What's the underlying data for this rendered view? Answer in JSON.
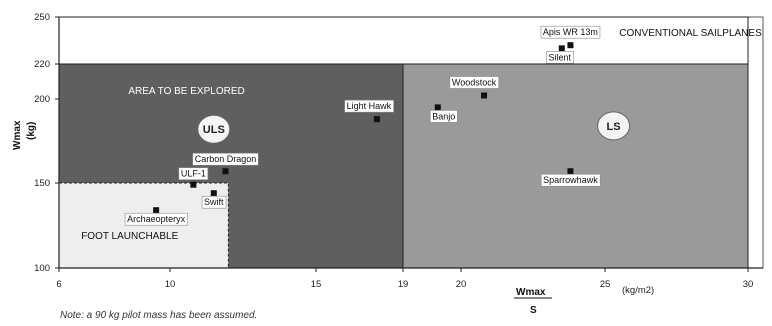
{
  "chart_data": {
    "type": "scatter",
    "x_range": [
      6,
      30
    ],
    "y_range": [
      100,
      250
    ],
    "x_ticks": [
      "6",
      "10",
      "15",
      "19",
      "20",
      "25",
      "30"
    ],
    "y_ticks": [
      "100",
      "150",
      "200",
      "220",
      "250"
    ],
    "xlabel": {
      "top": "Wmax",
      "bottom": "S"
    },
    "xunit": "(kg/m2)",
    "ylabel": {
      "top": "Wmax",
      "bottom": "(kg)"
    },
    "regions": [
      {
        "name": "CONVENTIONAL SAILPLANES",
        "x": [
          6,
          30
        ],
        "y": [
          220,
          250
        ],
        "color": "#ffffff"
      },
      {
        "name": "AREA TO BE EXPLORED",
        "badge": "ULS",
        "x": [
          6,
          19
        ],
        "y": [
          100,
          220
        ],
        "color": "#5f5f5f"
      },
      {
        "name": "",
        "badge": "LS",
        "x": [
          19,
          30
        ],
        "y": [
          100,
          220
        ],
        "color": "#9a9a9a"
      },
      {
        "name": "FOOT LAUNCHABLE",
        "x": [
          6,
          12
        ],
        "y": [
          100,
          150
        ],
        "color": "#f1f1f1"
      }
    ],
    "points": [
      {
        "label": "Apis WR 13m",
        "x": 23.8,
        "y": 232
      },
      {
        "label": "Silent",
        "x": 23.5,
        "y": 230
      },
      {
        "label": "Woodstock",
        "x": 20.8,
        "y": 202
      },
      {
        "label": "Banjo",
        "x": 19.6,
        "y": 195
      },
      {
        "label": "Light Hawk",
        "x": 17.8,
        "y": 188
      },
      {
        "label": "Carbon Dragon",
        "x": 11.9,
        "y": 157
      },
      {
        "label": "ULF-1",
        "x": 10.8,
        "y": 149
      },
      {
        "label": "Swift",
        "x": 11.5,
        "y": 144
      },
      {
        "label": "Archaeopteryx",
        "x": 9.5,
        "y": 134
      },
      {
        "label": "Sparrowhawk",
        "x": 23.8,
        "y": 157
      }
    ]
  },
  "note": "Note: a 90 kg pilot mass has been assumed."
}
